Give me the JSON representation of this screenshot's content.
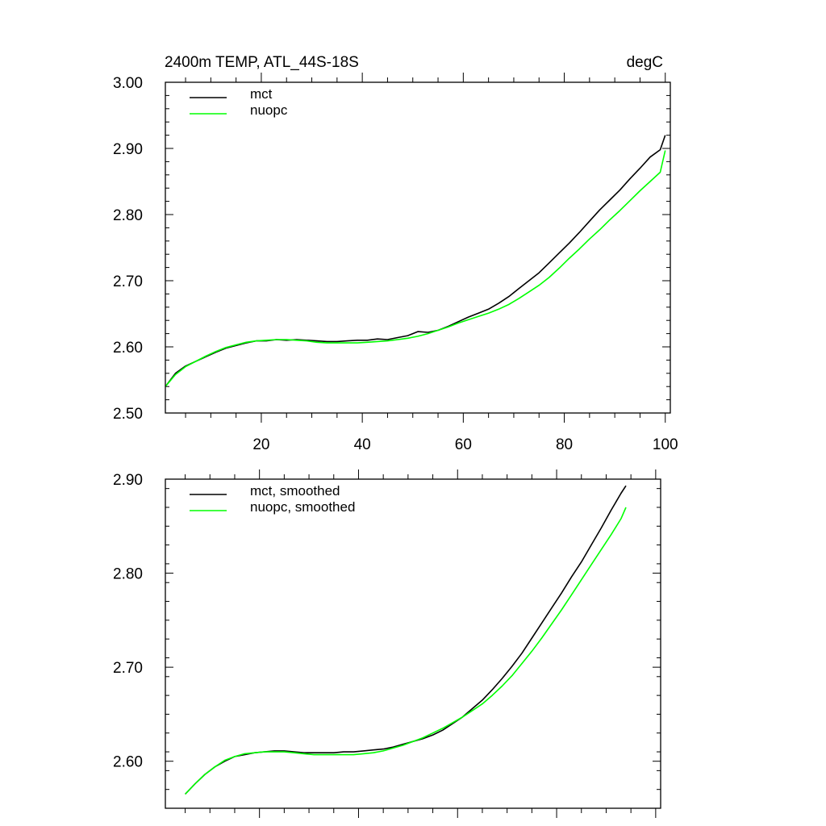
{
  "chart_data": [
    {
      "type": "line",
      "title": "2400m TEMP, ATL_44S-18S",
      "units": "degC",
      "xlim": [
        1,
        101
      ],
      "ylim": [
        2.5,
        3.0
      ],
      "xticks": [
        20,
        40,
        60,
        80,
        100
      ],
      "xticklabels": [
        "20",
        "40",
        "60",
        "80",
        "100"
      ],
      "yticks": [
        2.5,
        2.6,
        2.7,
        2.8,
        2.9,
        3.0
      ],
      "yticklabels": [
        "2.50",
        "2.60",
        "2.70",
        "2.80",
        "2.90",
        "3.00"
      ],
      "legend": "top-left",
      "series": [
        {
          "name": "mct",
          "color": "#000000",
          "points": [
            [
              1,
              2.54
            ],
            [
              3,
              2.56
            ],
            [
              5,
              2.571
            ],
            [
              7,
              2.578
            ],
            [
              9,
              2.585
            ],
            [
              11,
              2.592
            ],
            [
              13,
              2.598
            ],
            [
              15,
              2.602
            ],
            [
              17,
              2.606
            ],
            [
              19,
              2.609
            ],
            [
              21,
              2.609
            ],
            [
              23,
              2.611
            ],
            [
              25,
              2.61
            ],
            [
              27,
              2.611
            ],
            [
              29,
              2.61
            ],
            [
              31,
              2.609
            ],
            [
              33,
              2.608
            ],
            [
              35,
              2.608
            ],
            [
              37,
              2.609
            ],
            [
              39,
              2.61
            ],
            [
              41,
              2.61
            ],
            [
              43,
              2.612
            ],
            [
              45,
              2.611
            ],
            [
              47,
              2.614
            ],
            [
              49,
              2.617
            ],
            [
              51,
              2.623
            ],
            [
              53,
              2.622
            ],
            [
              55,
              2.625
            ],
            [
              57,
              2.631
            ],
            [
              59,
              2.638
            ],
            [
              61,
              2.645
            ],
            [
              63,
              2.651
            ],
            [
              65,
              2.657
            ],
            [
              67,
              2.666
            ],
            [
              69,
              2.676
            ],
            [
              71,
              2.688
            ],
            [
              73,
              2.7
            ],
            [
              75,
              2.712
            ],
            [
              77,
              2.727
            ],
            [
              79,
              2.742
            ],
            [
              81,
              2.757
            ],
            [
              83,
              2.773
            ],
            [
              85,
              2.79
            ],
            [
              87,
              2.807
            ],
            [
              89,
              2.822
            ],
            [
              91,
              2.837
            ],
            [
              93,
              2.854
            ],
            [
              95,
              2.87
            ],
            [
              97,
              2.887
            ],
            [
              99,
              2.898
            ],
            [
              100,
              2.92
            ]
          ]
        },
        {
          "name": "nuopc",
          "color": "#00ff00",
          "points": [
            [
              1,
              2.54
            ],
            [
              3,
              2.558
            ],
            [
              5,
              2.57
            ],
            [
              7,
              2.578
            ],
            [
              9,
              2.586
            ],
            [
              11,
              2.593
            ],
            [
              13,
              2.599
            ],
            [
              15,
              2.603
            ],
            [
              17,
              2.607
            ],
            [
              19,
              2.609
            ],
            [
              21,
              2.61
            ],
            [
              23,
              2.611
            ],
            [
              25,
              2.611
            ],
            [
              27,
              2.61
            ],
            [
              29,
              2.609
            ],
            [
              31,
              2.607
            ],
            [
              33,
              2.606
            ],
            [
              35,
              2.606
            ],
            [
              37,
              2.606
            ],
            [
              39,
              2.606
            ],
            [
              41,
              2.607
            ],
            [
              43,
              2.608
            ],
            [
              45,
              2.609
            ],
            [
              47,
              2.611
            ],
            [
              49,
              2.613
            ],
            [
              51,
              2.616
            ],
            [
              53,
              2.62
            ],
            [
              55,
              2.625
            ],
            [
              57,
              2.63
            ],
            [
              59,
              2.636
            ],
            [
              61,
              2.641
            ],
            [
              63,
              2.646
            ],
            [
              65,
              2.651
            ],
            [
              67,
              2.657
            ],
            [
              69,
              2.664
            ],
            [
              71,
              2.673
            ],
            [
              73,
              2.683
            ],
            [
              75,
              2.693
            ],
            [
              77,
              2.705
            ],
            [
              79,
              2.719
            ],
            [
              81,
              2.734
            ],
            [
              83,
              2.748
            ],
            [
              85,
              2.763
            ],
            [
              87,
              2.777
            ],
            [
              89,
              2.792
            ],
            [
              91,
              2.806
            ],
            [
              93,
              2.821
            ],
            [
              95,
              2.836
            ],
            [
              97,
              2.85
            ],
            [
              99,
              2.864
            ],
            [
              100,
              2.897
            ]
          ]
        }
      ]
    },
    {
      "type": "line",
      "title": "",
      "xlim": [
        1,
        101
      ],
      "ylim": [
        2.55,
        2.9
      ],
      "xticks": [
        20,
        40,
        60,
        80,
        100
      ],
      "yticks": [
        2.6,
        2.7,
        2.8,
        2.9
      ],
      "yticklabels": [
        "2.60",
        "2.70",
        "2.80",
        "2.90"
      ],
      "legend": "top-left",
      "series": [
        {
          "name": "mct, smoothed",
          "color": "#000000",
          "points": [
            [
              5,
              2.565
            ],
            [
              7,
              2.576
            ],
            [
              9,
              2.586
            ],
            [
              11,
              2.594
            ],
            [
              13,
              2.6
            ],
            [
              15,
              2.605
            ],
            [
              17,
              2.607
            ],
            [
              19,
              2.609
            ],
            [
              21,
              2.61
            ],
            [
              23,
              2.611
            ],
            [
              25,
              2.611
            ],
            [
              27,
              2.61
            ],
            [
              29,
              2.609
            ],
            [
              31,
              2.609
            ],
            [
              33,
              2.609
            ],
            [
              35,
              2.609
            ],
            [
              37,
              2.61
            ],
            [
              39,
              2.61
            ],
            [
              41,
              2.611
            ],
            [
              43,
              2.612
            ],
            [
              45,
              2.613
            ],
            [
              47,
              2.615
            ],
            [
              49,
              2.618
            ],
            [
              51,
              2.621
            ],
            [
              53,
              2.624
            ],
            [
              55,
              2.628
            ],
            [
              57,
              2.633
            ],
            [
              59,
              2.64
            ],
            [
              61,
              2.647
            ],
            [
              63,
              2.656
            ],
            [
              65,
              2.665
            ],
            [
              67,
              2.676
            ],
            [
              69,
              2.688
            ],
            [
              71,
              2.701
            ],
            [
              73,
              2.715
            ],
            [
              75,
              2.731
            ],
            [
              77,
              2.747
            ],
            [
              79,
              2.763
            ],
            [
              81,
              2.779
            ],
            [
              83,
              2.796
            ],
            [
              85,
              2.812
            ],
            [
              87,
              2.83
            ],
            [
              89,
              2.848
            ],
            [
              91,
              2.867
            ],
            [
              93,
              2.885
            ],
            [
              94,
              2.893
            ]
          ]
        },
        {
          "name": "nuopc, smoothed",
          "color": "#00ff00",
          "points": [
            [
              5,
              2.565
            ],
            [
              7,
              2.576
            ],
            [
              9,
              2.586
            ],
            [
              11,
              2.594
            ],
            [
              13,
              2.601
            ],
            [
              15,
              2.605
            ],
            [
              17,
              2.608
            ],
            [
              19,
              2.609
            ],
            [
              21,
              2.61
            ],
            [
              23,
              2.61
            ],
            [
              25,
              2.61
            ],
            [
              27,
              2.609
            ],
            [
              29,
              2.608
            ],
            [
              31,
              2.607
            ],
            [
              33,
              2.607
            ],
            [
              35,
              2.607
            ],
            [
              37,
              2.607
            ],
            [
              39,
              2.607
            ],
            [
              41,
              2.608
            ],
            [
              43,
              2.609
            ],
            [
              45,
              2.611
            ],
            [
              47,
              2.614
            ],
            [
              49,
              2.617
            ],
            [
              51,
              2.621
            ],
            [
              53,
              2.625
            ],
            [
              55,
              2.63
            ],
            [
              57,
              2.635
            ],
            [
              59,
              2.641
            ],
            [
              61,
              2.647
            ],
            [
              63,
              2.654
            ],
            [
              65,
              2.661
            ],
            [
              67,
              2.67
            ],
            [
              69,
              2.68
            ],
            [
              71,
              2.691
            ],
            [
              73,
              2.704
            ],
            [
              75,
              2.717
            ],
            [
              77,
              2.731
            ],
            [
              79,
              2.746
            ],
            [
              81,
              2.761
            ],
            [
              83,
              2.777
            ],
            [
              85,
              2.793
            ],
            [
              87,
              2.809
            ],
            [
              89,
              2.825
            ],
            [
              91,
              2.841
            ],
            [
              93,
              2.858
            ],
            [
              94,
              2.87
            ]
          ]
        }
      ]
    }
  ]
}
